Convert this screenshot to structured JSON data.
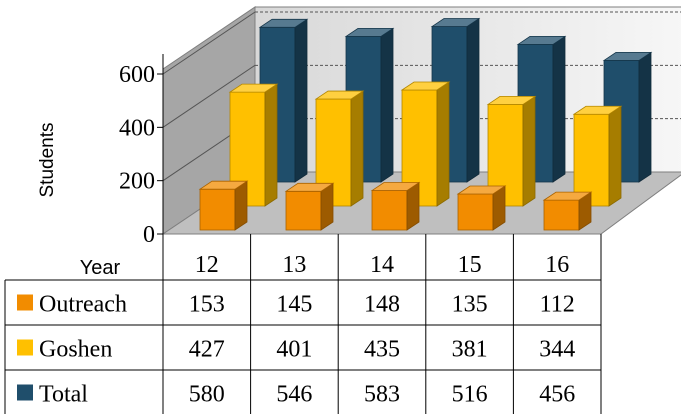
{
  "chart_data": {
    "type": "bar",
    "style": "3d-clustered-columns-with-data-table",
    "ylabel": "Students",
    "ylim": [
      0,
      600
    ],
    "yticks": [
      0,
      200,
      400,
      600
    ],
    "table_header": "Year",
    "categories": [
      "12",
      "13",
      "14",
      "15",
      "16"
    ],
    "grid": true,
    "legend_placement": "data-table-left",
    "series": [
      {
        "name": "Outreach",
        "color": "#F28C00",
        "values": [
          153,
          145,
          148,
          135,
          112
        ]
      },
      {
        "name": "Goshen",
        "color": "#FFC000",
        "values": [
          427,
          401,
          435,
          381,
          344
        ]
      },
      {
        "name": "Total",
        "color": "#1F4E6B",
        "values": [
          580,
          546,
          583,
          516,
          456
        ]
      }
    ]
  }
}
